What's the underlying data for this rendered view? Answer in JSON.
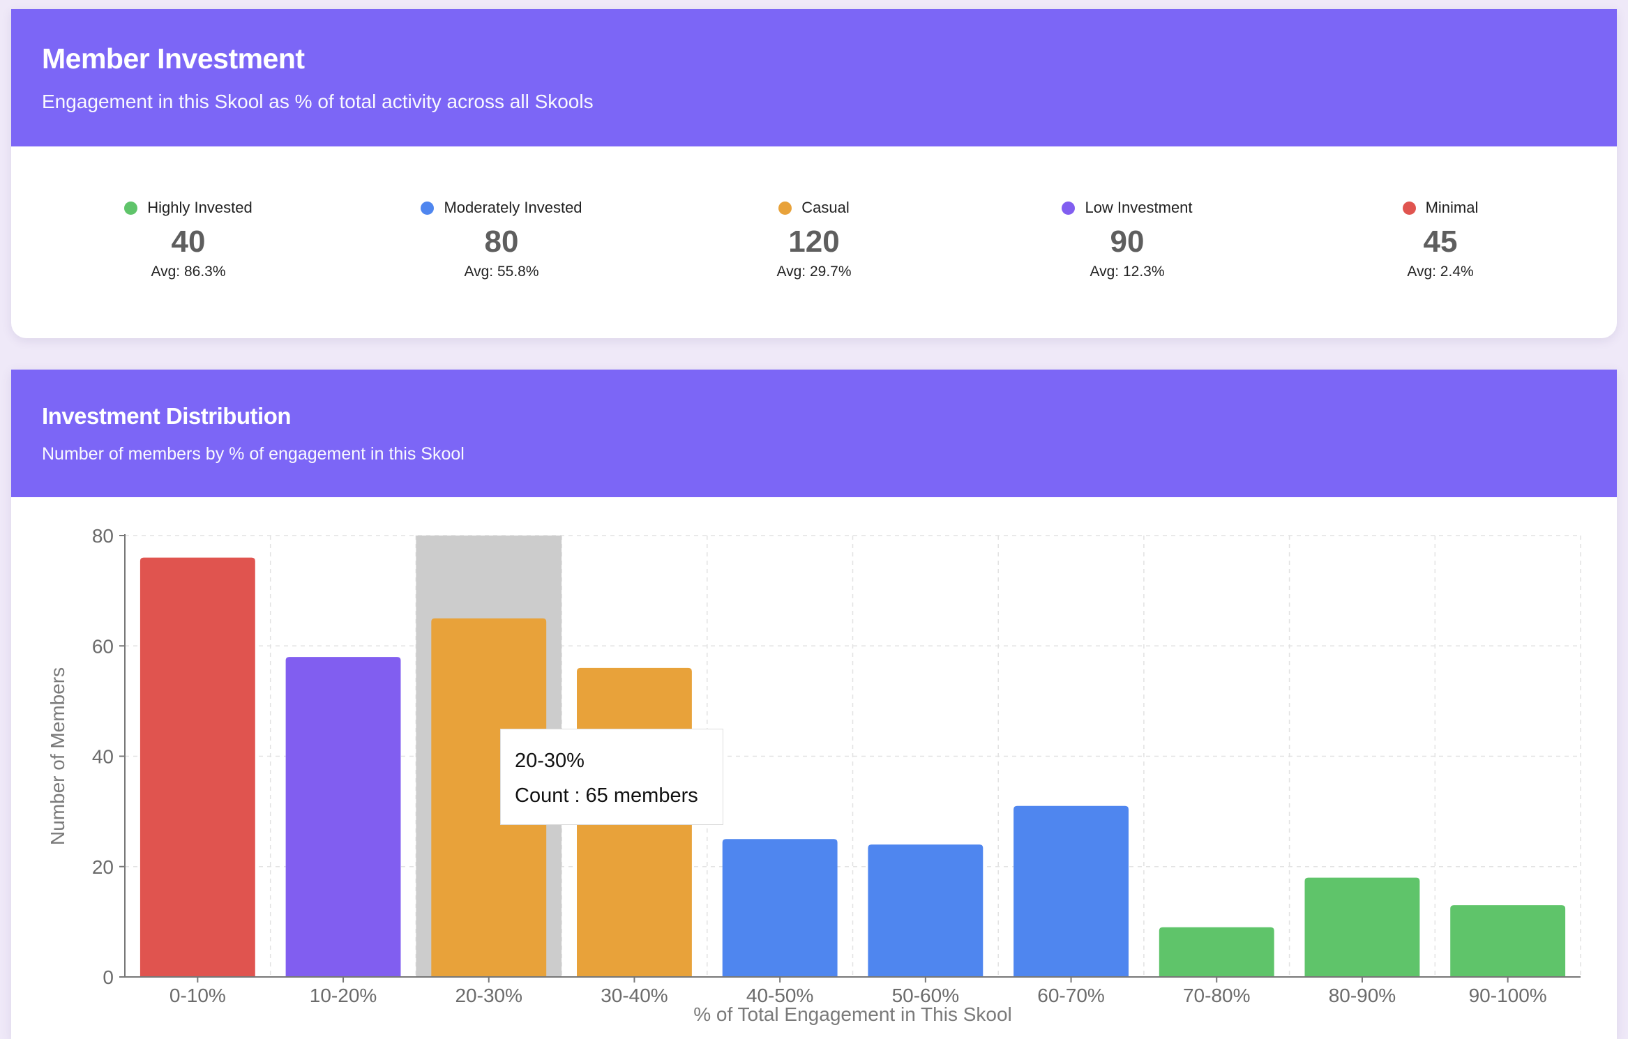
{
  "summary": {
    "title": "Member Investment",
    "subtitle": "Engagement in this Skool as % of total activity across all Skools",
    "groups": [
      {
        "label": "Highly Invested",
        "count": "40",
        "avg": "Avg: 86.3%",
        "color": "#5fc46a"
      },
      {
        "label": "Moderately Invested",
        "count": "80",
        "avg": "Avg: 55.8%",
        "color": "#4f86ef"
      },
      {
        "label": "Casual",
        "count": "120",
        "avg": "Avg: 29.7%",
        "color": "#e8a23a"
      },
      {
        "label": "Low Investment",
        "count": "90",
        "avg": "Avg: 12.3%",
        "color": "#815ef0"
      },
      {
        "label": "Minimal",
        "count": "45",
        "avg": "Avg: 2.4%",
        "color": "#e0544f"
      }
    ]
  },
  "distribution": {
    "title": "Investment Distribution",
    "subtitle": "Number of members by % of engagement in this Skool"
  },
  "chart_data": {
    "type": "bar",
    "categories": [
      "0-10%",
      "10-20%",
      "20-30%",
      "30-40%",
      "40-50%",
      "50-60%",
      "60-70%",
      "70-80%",
      "80-90%",
      "90-100%"
    ],
    "values": [
      76,
      58,
      65,
      56,
      25,
      24,
      31,
      9,
      18,
      13
    ],
    "colors": [
      "#e0544f",
      "#815ef0",
      "#e8a23a",
      "#e8a23a",
      "#4f86ef",
      "#4f86ef",
      "#4f86ef",
      "#5fc46a",
      "#5fc46a",
      "#5fc46a"
    ],
    "xlabel": "% of Total Engagement in This Skool",
    "ylabel": "Number of Members",
    "ylim": [
      0,
      80
    ],
    "yticks": [
      0,
      20,
      40,
      60,
      80
    ],
    "grid": true,
    "highlighted_category": "20-30%"
  },
  "tooltip": {
    "title": "20-30%",
    "text": "Count : 65 members"
  }
}
